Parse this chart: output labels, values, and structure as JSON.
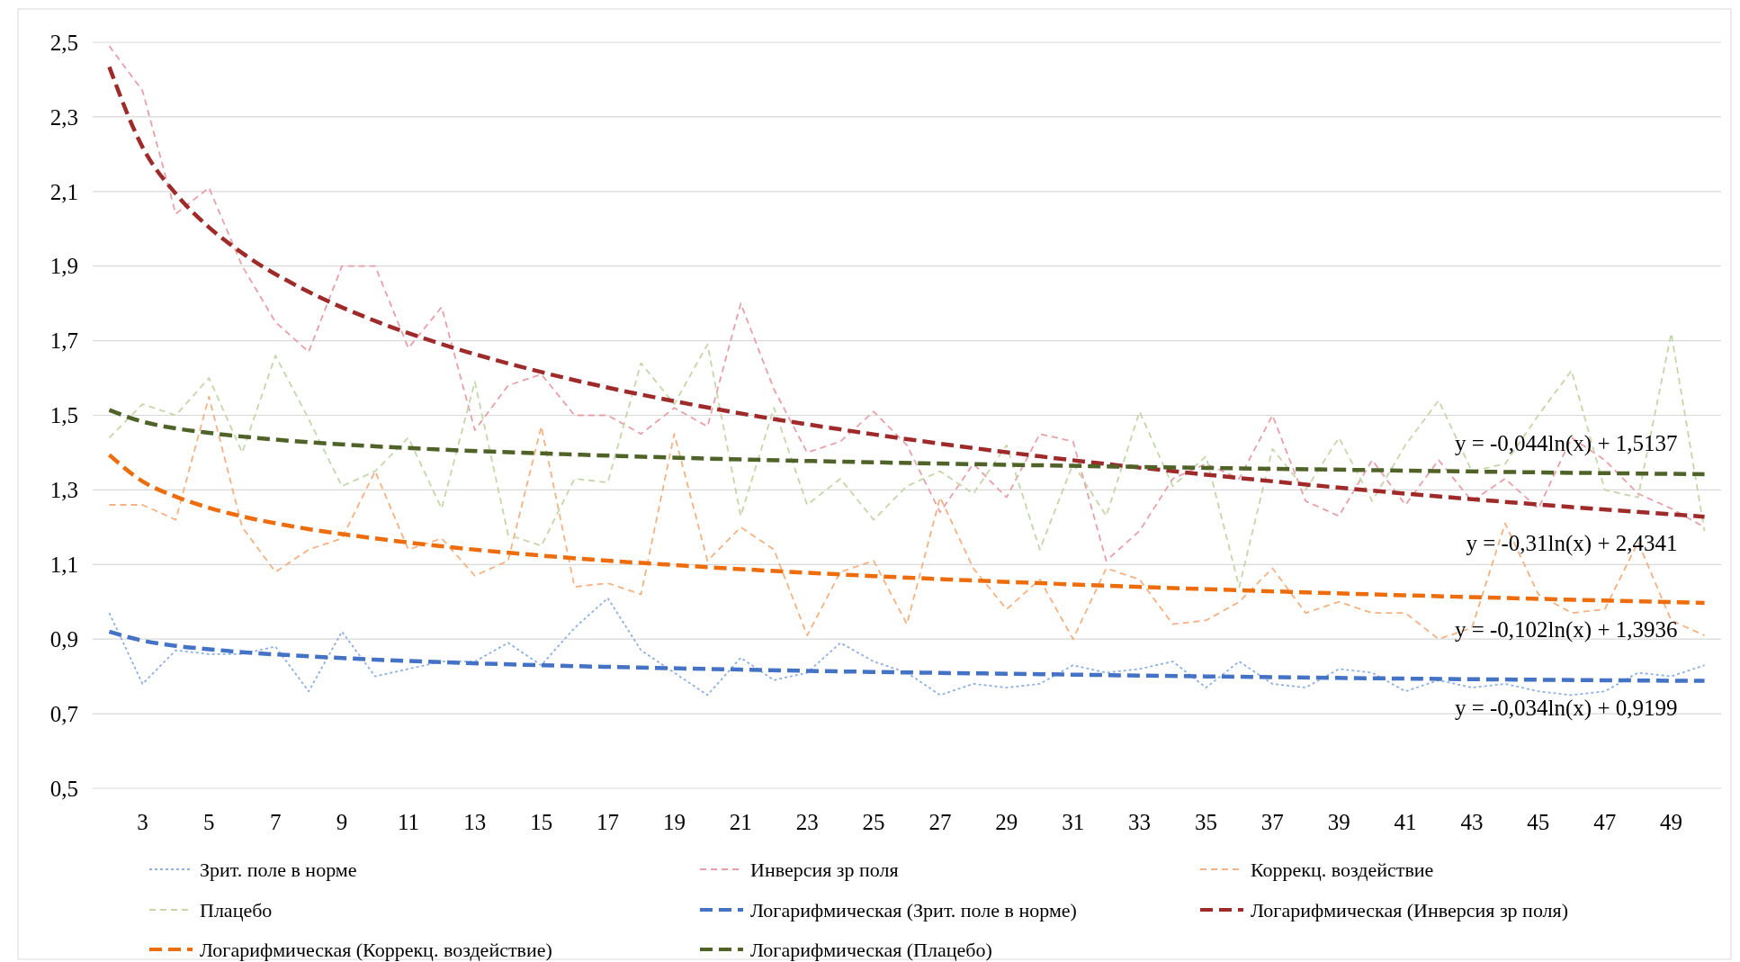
{
  "chart_data": {
    "type": "line",
    "x": [
      2,
      3,
      4,
      5,
      6,
      7,
      8,
      9,
      10,
      11,
      12,
      13,
      14,
      15,
      16,
      17,
      18,
      19,
      20,
      21,
      22,
      23,
      24,
      25,
      26,
      27,
      28,
      29,
      30,
      31,
      32,
      33,
      34,
      35,
      36,
      37,
      38,
      39,
      40,
      41,
      42,
      43,
      44,
      45,
      46,
      47,
      48,
      49,
      50
    ],
    "xlim": [
      1.5,
      50.5
    ],
    "xticks": [
      3,
      5,
      7,
      9,
      11,
      13,
      15,
      17,
      19,
      21,
      23,
      25,
      27,
      29,
      31,
      33,
      35,
      37,
      39,
      41,
      43,
      45,
      47,
      49
    ],
    "ylim": [
      0.5,
      2.5
    ],
    "yticks": [
      {
        "value": 0.5,
        "label": "0,5"
      },
      {
        "value": 0.7,
        "label": "0,7"
      },
      {
        "value": 0.9,
        "label": "0,9"
      },
      {
        "value": 1.1,
        "label": "1,1"
      },
      {
        "value": 1.3,
        "label": "1,3"
      },
      {
        "value": 1.5,
        "label": "1,5"
      },
      {
        "value": 1.7,
        "label": "1,7"
      },
      {
        "value": 1.9,
        "label": "1,9"
      },
      {
        "value": 2.1,
        "label": "2,1"
      },
      {
        "value": 2.3,
        "label": "2,3"
      },
      {
        "value": 2.5,
        "label": "2,5"
      }
    ],
    "grid": "y",
    "legend": "bottom",
    "marker": "none",
    "series": [
      {
        "name": "Зрит. поле в норме",
        "color": "#8fb0e0",
        "line_style": "dotted",
        "values": [
          0.97,
          0.78,
          0.87,
          0.86,
          0.86,
          0.88,
          0.76,
          0.92,
          0.8,
          0.82,
          0.84,
          0.84,
          0.89,
          0.83,
          0.93,
          1.01,
          0.87,
          0.81,
          0.75,
          0.85,
          0.79,
          0.81,
          0.89,
          0.84,
          0.81,
          0.75,
          0.78,
          0.77,
          0.78,
          0.83,
          0.81,
          0.82,
          0.84,
          0.77,
          0.84,
          0.78,
          0.77,
          0.82,
          0.81,
          0.76,
          0.79,
          0.77,
          0.78,
          0.76,
          0.75,
          0.76,
          0.81,
          0.8,
          0.83
        ]
      },
      {
        "name": "Инверсия зр поля",
        "color": "#e8a0a8",
        "line_style": "dashed",
        "values": [
          2.49,
          2.37,
          2.04,
          2.11,
          1.9,
          1.75,
          1.67,
          1.9,
          1.9,
          1.68,
          1.79,
          1.46,
          1.58,
          1.61,
          1.5,
          1.5,
          1.45,
          1.52,
          1.47,
          1.8,
          1.57,
          1.4,
          1.43,
          1.51,
          1.42,
          1.24,
          1.37,
          1.28,
          1.45,
          1.43,
          1.11,
          1.19,
          1.33,
          1.37,
          1.33,
          1.5,
          1.27,
          1.23,
          1.38,
          1.26,
          1.38,
          1.27,
          1.33,
          1.25,
          1.44,
          1.38,
          1.29,
          1.25,
          1.2
        ]
      },
      {
        "name": "Коррекц. воздействие",
        "color": "#f4b183",
        "line_style": "dashed",
        "values": [
          1.26,
          1.26,
          1.22,
          1.55,
          1.2,
          1.08,
          1.14,
          1.17,
          1.35,
          1.14,
          1.17,
          1.07,
          1.11,
          1.47,
          1.04,
          1.05,
          1.02,
          1.45,
          1.11,
          1.2,
          1.14,
          0.91,
          1.08,
          1.11,
          0.94,
          1.28,
          1.09,
          0.98,
          1.06,
          0.9,
          1.09,
          1.06,
          0.94,
          0.95,
          1,
          1.09,
          0.97,
          1,
          0.97,
          0.97,
          0.9,
          0.93,
          1.21,
          1.02,
          0.97,
          0.98,
          1.16,
          0.95,
          0.91
        ]
      },
      {
        "name": "Плацебо",
        "color": "#c5d6a8",
        "line_style": "dashed",
        "values": [
          1.44,
          1.53,
          1.5,
          1.6,
          1.4,
          1.66,
          1.49,
          1.31,
          1.35,
          1.44,
          1.25,
          1.59,
          1.18,
          1.15,
          1.33,
          1.32,
          1.64,
          1.53,
          1.69,
          1.23,
          1.52,
          1.26,
          1.33,
          1.22,
          1.31,
          1.35,
          1.29,
          1.42,
          1.14,
          1.37,
          1.23,
          1.51,
          1.31,
          1.39,
          1.04,
          1.41,
          1.3,
          1.44,
          1.27,
          1.42,
          1.54,
          1.35,
          1.37,
          1.5,
          1.62,
          1.3,
          1.28,
          1.72,
          1.19
        ]
      },
      {
        "name": "Логарифмическая (Зрит. поле в норме)",
        "color": "#4472c4",
        "line_style": "dashed",
        "x": [
          2,
          3,
          4,
          5,
          6,
          8,
          10,
          12,
          15,
          20,
          25,
          30,
          35,
          40,
          45,
          50
        ],
        "values": [
          0.92,
          0.896,
          0.882,
          0.873,
          0.865,
          0.854,
          0.845,
          0.838,
          0.83,
          0.82,
          0.812,
          0.806,
          0.8,
          0.795,
          0.791,
          0.788
        ]
      },
      {
        "name": "Логарифмическая (Инверсия зр поля)",
        "color": "#9e2a2a",
        "line_style": "dashed",
        "x": [
          2,
          3,
          4,
          5,
          6,
          8,
          10,
          12,
          15,
          20,
          25,
          30,
          35,
          40,
          45,
          50
        ],
        "values": [
          2.434,
          2.219,
          2.094,
          2.004,
          1.935,
          1.831,
          1.753,
          1.691,
          1.616,
          1.521,
          1.449,
          1.39,
          1.341,
          1.298,
          1.261,
          1.228
        ]
      },
      {
        "name": "Логарифмическая (Коррекц. воздействие)",
        "color": "#ed6c0c",
        "line_style": "dashed",
        "x": [
          2,
          3,
          4,
          5,
          6,
          8,
          10,
          12,
          15,
          20,
          25,
          30,
          35,
          40,
          45,
          50
        ],
        "values": [
          1.394,
          1.323,
          1.282,
          1.252,
          1.229,
          1.195,
          1.17,
          1.149,
          1.124,
          1.093,
          1.069,
          1.05,
          1.034,
          1.02,
          1.008,
          0.997
        ]
      },
      {
        "name": "Логарифмическая (Плацебо)",
        "color": "#4f6228",
        "line_style": "dashed",
        "x": [
          2,
          3,
          4,
          5,
          6,
          8,
          10,
          12,
          15,
          20,
          25,
          30,
          35,
          40,
          45,
          50
        ],
        "values": [
          1.514,
          1.483,
          1.465,
          1.453,
          1.443,
          1.428,
          1.417,
          1.408,
          1.398,
          1.384,
          1.374,
          1.366,
          1.359,
          1.353,
          1.347,
          1.342
        ]
      }
    ],
    "annotations": [
      "y = -0,034ln(x) + 0,9199",
      "y = -0,31ln(x) + 2,4341",
      "y = -0,102ln(x) + 1,3936",
      "y = -0,044ln(x) + 1,5137"
    ]
  }
}
